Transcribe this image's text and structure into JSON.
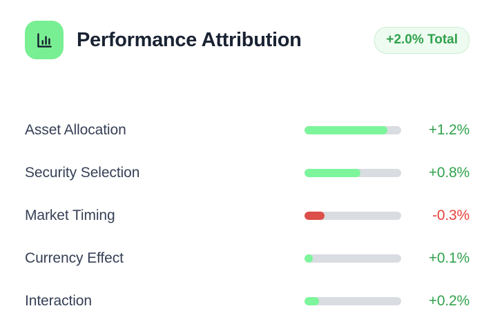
{
  "header": {
    "title": "Performance Attribution",
    "badge_label": "+2.0% Total",
    "icon": "bar-chart-icon"
  },
  "colors": {
    "icon_bg": "#79ef94",
    "icon_glyph": "#131c2b",
    "title_text": "#1a2333",
    "label_text": "#353f55",
    "track": "#d9dce1",
    "green_fill": "#7df59b",
    "red_fill": "#dd4f4a",
    "green_text": "#31a24c",
    "red_text": "#e8433c",
    "badge_bg": "#eefbf1",
    "badge_border": "#c9eed3"
  },
  "rows": [
    {
      "label": "Asset Allocation",
      "value": "+1.2%",
      "fill_pct": 86,
      "tone": "positive"
    },
    {
      "label": "Security Selection",
      "value": "+0.8%",
      "fill_pct": 58,
      "tone": "positive"
    },
    {
      "label": "Market Timing",
      "value": "-0.3%",
      "fill_pct": 21,
      "tone": "negative"
    },
    {
      "label": "Currency Effect",
      "value": "+0.1%",
      "fill_pct": 8,
      "tone": "positive"
    },
    {
      "label": "Interaction",
      "value": "+0.2%",
      "fill_pct": 15,
      "tone": "positive"
    }
  ],
  "chart_data": {
    "type": "bar",
    "orientation": "horizontal",
    "title": "Performance Attribution",
    "total_label": "+2.0% Total",
    "categories": [
      "Asset Allocation",
      "Security Selection",
      "Market Timing",
      "Currency Effect",
      "Interaction"
    ],
    "values": [
      1.2,
      0.8,
      -0.3,
      0.1,
      0.2
    ],
    "value_labels": [
      "+1.2%",
      "+0.8%",
      "-0.3%",
      "+0.1%",
      "+0.2%"
    ],
    "unit": "%",
    "xlim": [
      0,
      1.4
    ],
    "grid": false,
    "legend": false,
    "positive_color": "#7df59b",
    "negative_color": "#dd4f4a"
  }
}
